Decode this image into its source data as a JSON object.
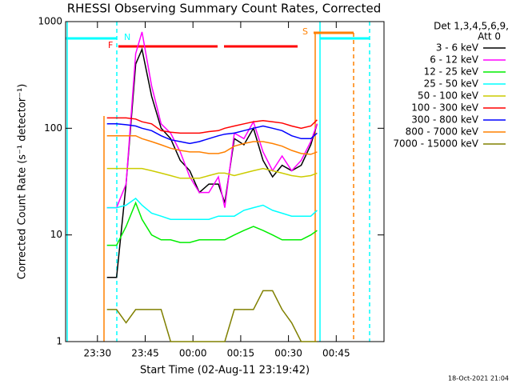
{
  "chart_data": {
    "type": "line",
    "title": "RHESSI Observing Summary Count Rates, Corrected",
    "x_label": "Start Time (02-Aug-11 23:19:42)",
    "y_label": "Corrected Count Rate (s⁻¹ detector⁻¹)",
    "log_y": true,
    "xlim": [
      "23:20",
      "01:00"
    ],
    "xticks": [
      "23:30",
      "23:45",
      "00:00",
      "00:15",
      "00:30",
      "00:45"
    ],
    "ylim": [
      1,
      1000
    ],
    "yticks": [
      1,
      10,
      100,
      1000
    ],
    "legend_title": [
      "Det 1,3,4,5,6,9,",
      "Att 0"
    ],
    "legend": "upper right",
    "annotations": [
      "N",
      "F",
      "S"
    ],
    "footer": "18-Oct-2021 21:04",
    "x": [
      "23:33",
      "23:36",
      "23:39",
      "23:42",
      "23:44",
      "23:47",
      "23:50",
      "23:53",
      "23:56",
      "23:59",
      "00:02",
      "00:05",
      "00:08",
      "00:10",
      "00:13",
      "00:16",
      "00:19",
      "00:22",
      "00:25",
      "00:28",
      "00:31",
      "00:34",
      "00:37",
      "00:39"
    ],
    "series": [
      {
        "name": "3 - 6 keV",
        "color": "#000000",
        "values": [
          4,
          4,
          30,
          400,
          550,
          200,
          100,
          80,
          50,
          40,
          25,
          30,
          30,
          20,
          80,
          70,
          100,
          50,
          35,
          45,
          40,
          45,
          70,
          110
        ]
      },
      {
        "name": "6 - 12 keV",
        "color": "#ff00ff",
        "values": [
          18,
          18,
          30,
          500,
          800,
          250,
          110,
          90,
          60,
          35,
          25,
          25,
          35,
          18,
          90,
          80,
          115,
          60,
          40,
          55,
          40,
          50,
          75,
          110
        ]
      },
      {
        "name": "12 - 25 keV",
        "color": "#00ee00",
        "values": [
          8,
          8,
          12,
          20,
          14,
          10,
          9,
          9,
          8.5,
          8.5,
          9,
          9,
          9,
          9,
          10,
          11,
          12,
          11,
          10,
          9,
          9,
          9,
          10,
          11
        ]
      },
      {
        "name": "25 - 50 keV",
        "color": "#00ffff",
        "values": [
          18,
          18,
          19,
          22,
          19,
          16,
          15,
          14,
          14,
          14,
          14,
          14,
          15,
          15,
          15,
          17,
          18,
          19,
          17,
          16,
          15,
          15,
          15,
          17
        ]
      },
      {
        "name": "50 - 100 keV",
        "color": "#cccc00",
        "values": [
          42,
          42,
          42,
          42,
          42,
          40,
          38,
          36,
          34,
          34,
          34,
          36,
          38,
          38,
          36,
          38,
          40,
          42,
          40,
          38,
          36,
          35,
          36,
          38
        ]
      },
      {
        "name": "100 - 300 keV",
        "color": "#ff0000",
        "values": [
          125,
          125,
          125,
          122,
          115,
          110,
          95,
          92,
          90,
          90,
          90,
          93,
          95,
          100,
          105,
          110,
          115,
          118,
          115,
          112,
          105,
          100,
          105,
          120
        ]
      },
      {
        "name": "300 - 800 keV",
        "color": "#0000ff",
        "values": [
          110,
          110,
          108,
          105,
          100,
          95,
          85,
          78,
          75,
          72,
          75,
          80,
          85,
          88,
          90,
          95,
          100,
          105,
          100,
          95,
          85,
          80,
          80,
          90
        ]
      },
      {
        "name": "800 - 7000 keV",
        "color": "#ff8000",
        "values": [
          85,
          85,
          85,
          85,
          80,
          75,
          70,
          65,
          62,
          60,
          60,
          58,
          58,
          60,
          68,
          72,
          75,
          75,
          72,
          68,
          62,
          58,
          57,
          60
        ]
      },
      {
        "name": "7000 - 15000 keV",
        "color": "#808000",
        "values": [
          2,
          2,
          1.5,
          2,
          2,
          2,
          2,
          1,
          1,
          1,
          1,
          1,
          1,
          1,
          2,
          2,
          2,
          3,
          3,
          2,
          1.5,
          1,
          1,
          1
        ]
      }
    ]
  }
}
